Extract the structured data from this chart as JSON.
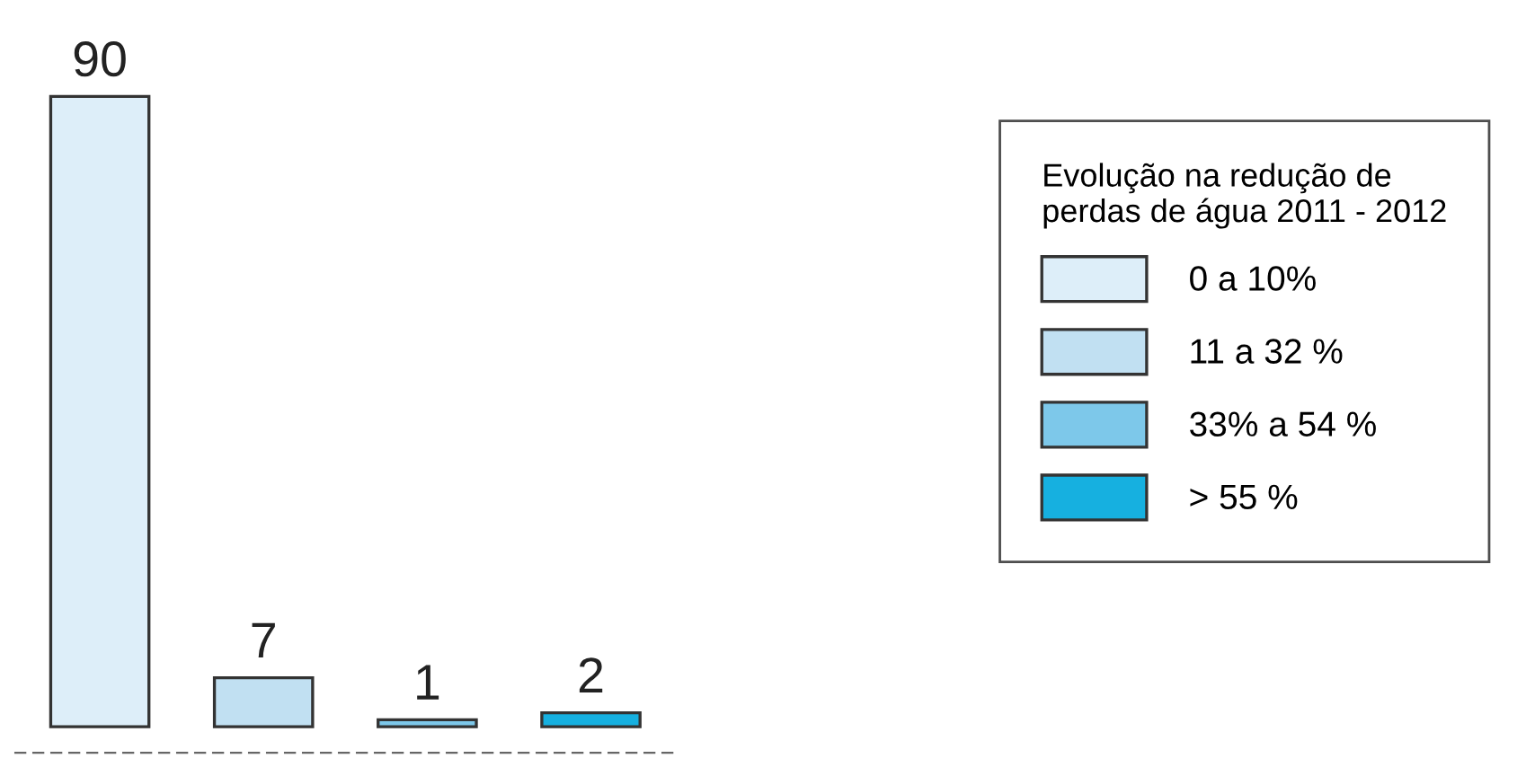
{
  "chart_data": {
    "type": "bar",
    "categories": [
      null,
      null,
      null,
      null
    ],
    "series": [
      {
        "name": "0 a 10%",
        "color": "#ddeef9",
        "values": [
          90,
          null,
          null,
          null
        ]
      },
      {
        "name": "11 a 32 %",
        "color": "#c1e0f2",
        "values": [
          null,
          7,
          null,
          null
        ]
      },
      {
        "name": "33% a 54 %",
        "color": "#7dc8ea",
        "values": [
          null,
          null,
          1,
          null
        ]
      },
      {
        "name": "> 55 %",
        "color": "#16b0e0",
        "values": [
          null,
          null,
          null,
          2
        ]
      }
    ],
    "stacked": true,
    "legend_title": "Evolução na redução de\nperdas de água 2011 - 2012",
    "legend": "right",
    "data_labels": true
  }
}
